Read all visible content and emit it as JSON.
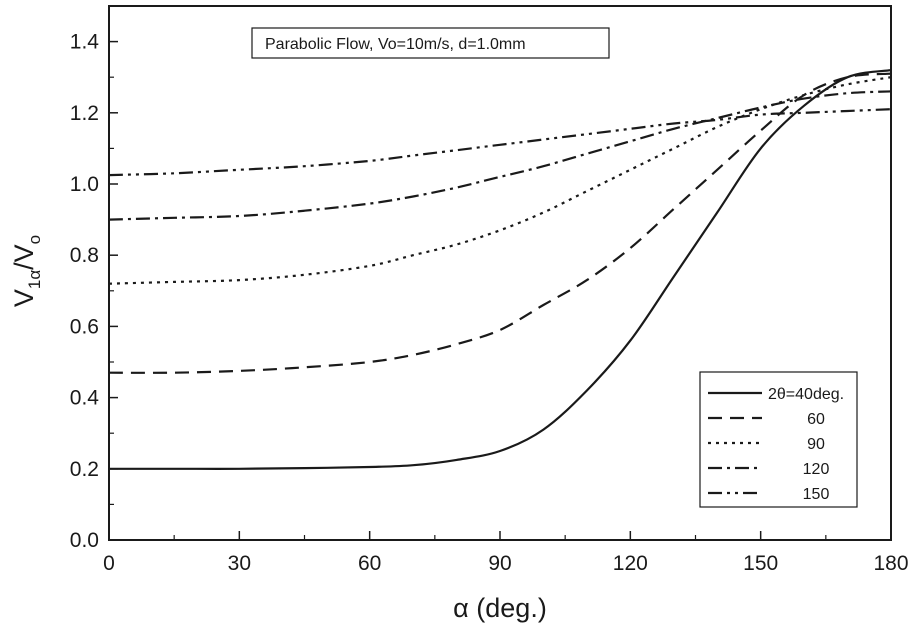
{
  "chart_data": {
    "type": "line",
    "title": "",
    "annotation": "Parabolic Flow, Vo=10m/s, d=1.0mm",
    "xlabel": "α (deg.)",
    "ylabel": {
      "main": "V",
      "sub1": "1α",
      "slash": "/V",
      "sub2": "o"
    },
    "xlim": [
      0,
      180
    ],
    "ylim": [
      0,
      1.5
    ],
    "xticks": [
      0,
      30,
      60,
      90,
      120,
      150,
      180
    ],
    "yticks": [
      0.0,
      0.2,
      0.4,
      0.6,
      0.8,
      1.0,
      1.2,
      1.4
    ],
    "ytick_labels": [
      "0.0",
      "0.2",
      "0.4",
      "0.6",
      "0.8",
      "1.0",
      "1.2",
      "1.4"
    ],
    "grid": false,
    "legend_position": "bottom-right",
    "x": [
      0,
      15,
      30,
      45,
      60,
      70,
      80,
      90,
      100,
      110,
      120,
      130,
      140,
      150,
      160,
      170,
      180
    ],
    "series": [
      {
        "name": "2θ=40deg.",
        "dash": "solid",
        "values": [
          0.2,
          0.2,
          0.2,
          0.202,
          0.205,
          0.21,
          0.225,
          0.25,
          0.31,
          0.42,
          0.56,
          0.74,
          0.92,
          1.1,
          1.22,
          1.3,
          1.32
        ]
      },
      {
        "name": "60",
        "dash": "dash",
        "values": [
          0.47,
          0.47,
          0.475,
          0.485,
          0.5,
          0.52,
          0.55,
          0.59,
          0.66,
          0.73,
          0.82,
          0.93,
          1.04,
          1.15,
          1.25,
          1.3,
          1.31
        ]
      },
      {
        "name": "90",
        "dash": "dot",
        "values": [
          0.72,
          0.725,
          0.73,
          0.745,
          0.77,
          0.8,
          0.83,
          0.87,
          0.92,
          0.98,
          1.04,
          1.1,
          1.16,
          1.21,
          1.25,
          1.28,
          1.3
        ]
      },
      {
        "name": "120",
        "dash": "dashdot",
        "values": [
          0.9,
          0.905,
          0.91,
          0.925,
          0.945,
          0.965,
          0.99,
          1.02,
          1.05,
          1.085,
          1.12,
          1.155,
          1.185,
          1.215,
          1.24,
          1.255,
          1.26
        ]
      },
      {
        "name": "150",
        "dash": "dashdotdot",
        "values": [
          1.025,
          1.03,
          1.04,
          1.05,
          1.065,
          1.08,
          1.095,
          1.11,
          1.125,
          1.14,
          1.155,
          1.17,
          1.18,
          1.195,
          1.2,
          1.205,
          1.21
        ]
      }
    ]
  }
}
